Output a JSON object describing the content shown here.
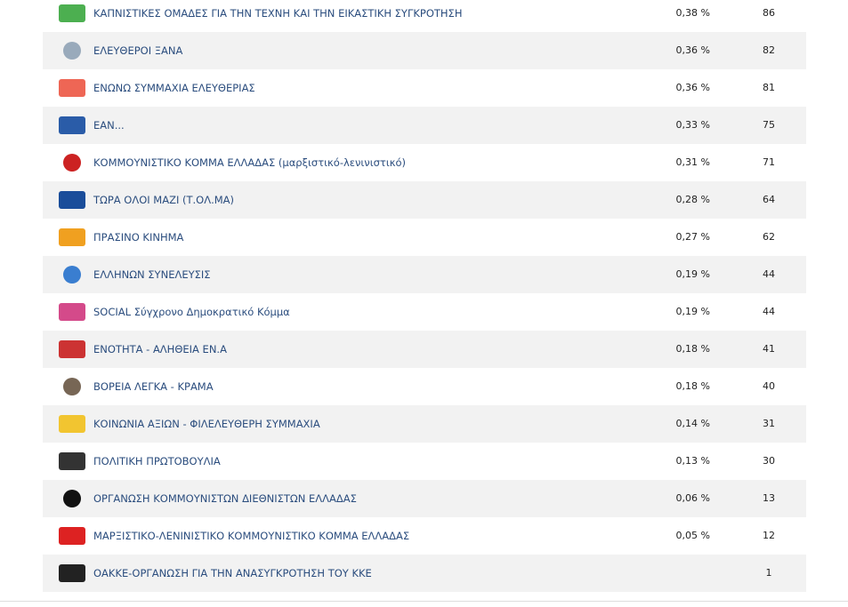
{
  "table": {
    "rows": [
      {
        "name": "ΚΑΠΝΙΣΤΙΚΕΣ ΟΜΑΔΕΣ ΓΙΑ ΤΗΝ ΤΕΧΝΗ ΚΑΙ ΤΗΝ ΕΙΚΑΣΤΙΚΗ ΣΥΓΚΡΟΤΗΣΗ",
        "percent": "0,38 %",
        "votes": 86
      },
      {
        "name": "ΕΛΕΥΘΕΡΟΙ ΞΑΝΑ",
        "percent": "0,36 %",
        "votes": 82
      },
      {
        "name": "ΕΝΩΝΩ ΣΥΜΜΑΧΙΑ ΕΛΕΥΘΕΡΙΑΣ",
        "percent": "0,36 %",
        "votes": 81
      },
      {
        "name": "ΕΑΝ...",
        "percent": "0,33 %",
        "votes": 75
      },
      {
        "name": "ΚΟΜΜΟΥΝΙΣΤΙΚΟ ΚΟΜΜΑ ΕΛΛΑΔΑΣ (μαρξιστικό-λενινιστικό)",
        "percent": "0,31 %",
        "votes": 71
      },
      {
        "name": "ΤΩΡΑ ΟΛΟΙ ΜΑΖΙ (Τ.ΟΛ.ΜΑ)",
        "percent": "0,28 %",
        "votes": 64
      },
      {
        "name": "ΠΡΑΣΙΝΟ ΚΙΝΗΜΑ",
        "percent": "0,27 %",
        "votes": 62
      },
      {
        "name": "ΕΛΛΗΝΩΝ ΣΥΝΕΛΕΥΣΙΣ",
        "percent": "0,19 %",
        "votes": 44
      },
      {
        "name": "SOCIAL Σύγχρονο Δημοκρατικό Κόμμα",
        "percent": "0,19 %",
        "votes": 44
      },
      {
        "name": "ΕΝΟΤΗΤΑ - ΑΛΗΘΕΙΑ ΕΝ.Α",
        "percent": "0,18 %",
        "votes": 41
      },
      {
        "name": "ΒΟΡΕΙΑ ΛΕΓΚΑ - ΚΡΑΜΑ",
        "percent": "0,18 %",
        "votes": 40
      },
      {
        "name": "ΚΟΙΝΩΝΙΑ ΑΞΙΩΝ - ΦΙΛΕΛΕΥΘΕΡΗ ΣΥΜΜΑΧΙΑ",
        "percent": "0,14 %",
        "votes": 31
      },
      {
        "name": "ΠΟΛΙΤΙΚΗ ΠΡΩΤΟΒΟΥΛΙΑ",
        "percent": "0,13 %",
        "votes": 30
      },
      {
        "name": "ΟΡΓΑΝΩΣΗ ΚΟΜΜΟΥΝΙΣΤΩΝ ΔΙΕΘΝΙΣΤΩΝ ΕΛΛΑΔΑΣ",
        "percent": "0,06 %",
        "votes": 13
      },
      {
        "name": "ΜΑΡΞΙΣΤΙΚΟ-ΛΕΝΙΝΙΣΤΙΚΟ ΚΟΜΜΟΥΝΙΣΤΙΚΟ ΚΟΜΜΑ ΕΛΛΑΔΑΣ",
        "percent": "0,05 %",
        "votes": 12
      },
      {
        "name": "ΟΑΚΚΕ-ΟΡΓΑΝΩΣΗ ΓΙΑ ΤΗΝ ΑΝΑΣΥΓΚΡΟΤΗΣΗ ΤΟΥ ΚΚΕ",
        "votes": 1
      }
    ]
  }
}
